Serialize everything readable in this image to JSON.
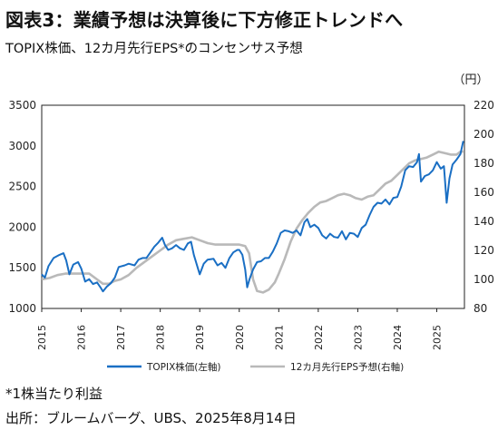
{
  "title": "図表3：業績予想は決算後に下方修正トレンドへ",
  "subtitle": "TOPIX株価、12カ月先行EPS*のコンセンサス予想",
  "note": "*1株当たり利益",
  "source": "出所：ブルームバーグ、UBS、2025年8月14日",
  "chart_data": {
    "type": "line",
    "x_label": "",
    "x_ticks": [
      "2015",
      "2016",
      "2017",
      "2018",
      "2019",
      "2020",
      "2021",
      "2022",
      "2023",
      "2024",
      "2025"
    ],
    "x_range": [
      2015.0,
      2025.7
    ],
    "y_left": {
      "range": [
        1000,
        3500
      ],
      "ticks": [
        1000,
        1500,
        2000,
        2500,
        3000,
        3500
      ],
      "label": ""
    },
    "y_right": {
      "range": [
        80,
        220
      ],
      "ticks": [
        80,
        100,
        120,
        140,
        160,
        180,
        200,
        220
      ],
      "label": "（円）"
    },
    "grid": false,
    "legend_position": "bottom-center",
    "series": [
      {
        "name": "TOPIX株価(左軸)",
        "axis": "left",
        "color": "#1a6fc4",
        "points": [
          [
            2015.0,
            1420
          ],
          [
            2015.08,
            1380
          ],
          [
            2015.17,
            1520
          ],
          [
            2015.3,
            1620
          ],
          [
            2015.45,
            1660
          ],
          [
            2015.55,
            1680
          ],
          [
            2015.62,
            1590
          ],
          [
            2015.7,
            1420
          ],
          [
            2015.8,
            1540
          ],
          [
            2015.92,
            1570
          ],
          [
            2016.0,
            1490
          ],
          [
            2016.1,
            1330
          ],
          [
            2016.2,
            1360
          ],
          [
            2016.3,
            1300
          ],
          [
            2016.4,
            1320
          ],
          [
            2016.5,
            1250
          ],
          [
            2016.55,
            1210
          ],
          [
            2016.65,
            1270
          ],
          [
            2016.75,
            1310
          ],
          [
            2016.85,
            1380
          ],
          [
            2016.95,
            1510
          ],
          [
            2017.1,
            1530
          ],
          [
            2017.2,
            1550
          ],
          [
            2017.35,
            1530
          ],
          [
            2017.45,
            1600
          ],
          [
            2017.55,
            1620
          ],
          [
            2017.65,
            1620
          ],
          [
            2017.75,
            1690
          ],
          [
            2017.85,
            1760
          ],
          [
            2017.95,
            1810
          ],
          [
            2018.05,
            1870
          ],
          [
            2018.12,
            1780
          ],
          [
            2018.2,
            1720
          ],
          [
            2018.3,
            1740
          ],
          [
            2018.4,
            1780
          ],
          [
            2018.5,
            1740
          ],
          [
            2018.6,
            1720
          ],
          [
            2018.7,
            1800
          ],
          [
            2018.78,
            1820
          ],
          [
            2018.85,
            1660
          ],
          [
            2018.95,
            1500
          ],
          [
            2019.0,
            1420
          ],
          [
            2019.1,
            1550
          ],
          [
            2019.2,
            1600
          ],
          [
            2019.35,
            1610
          ],
          [
            2019.45,
            1530
          ],
          [
            2019.55,
            1560
          ],
          [
            2019.65,
            1500
          ],
          [
            2019.75,
            1620
          ],
          [
            2019.85,
            1690
          ],
          [
            2019.95,
            1720
          ],
          [
            2020.0,
            1720
          ],
          [
            2020.08,
            1660
          ],
          [
            2020.15,
            1480
          ],
          [
            2020.2,
            1260
          ],
          [
            2020.26,
            1360
          ],
          [
            2020.35,
            1480
          ],
          [
            2020.45,
            1570
          ],
          [
            2020.55,
            1580
          ],
          [
            2020.65,
            1620
          ],
          [
            2020.75,
            1620
          ],
          [
            2020.85,
            1700
          ],
          [
            2020.95,
            1800
          ],
          [
            2021.05,
            1930
          ],
          [
            2021.15,
            1960
          ],
          [
            2021.25,
            1950
          ],
          [
            2021.35,
            1930
          ],
          [
            2021.45,
            1960
          ],
          [
            2021.55,
            1900
          ],
          [
            2021.65,
            2060
          ],
          [
            2021.72,
            2100
          ],
          [
            2021.8,
            2000
          ],
          [
            2021.9,
            2030
          ],
          [
            2022.0,
            1990
          ],
          [
            2022.1,
            1900
          ],
          [
            2022.2,
            1860
          ],
          [
            2022.3,
            1920
          ],
          [
            2022.4,
            1880
          ],
          [
            2022.5,
            1870
          ],
          [
            2022.6,
            1950
          ],
          [
            2022.7,
            1850
          ],
          [
            2022.8,
            1930
          ],
          [
            2022.9,
            1920
          ],
          [
            2023.0,
            1880
          ],
          [
            2023.1,
            1990
          ],
          [
            2023.2,
            2030
          ],
          [
            2023.3,
            2150
          ],
          [
            2023.4,
            2250
          ],
          [
            2023.5,
            2300
          ],
          [
            2023.6,
            2290
          ],
          [
            2023.7,
            2340
          ],
          [
            2023.8,
            2280
          ],
          [
            2023.9,
            2360
          ],
          [
            2024.0,
            2370
          ],
          [
            2024.1,
            2500
          ],
          [
            2024.2,
            2700
          ],
          [
            2024.3,
            2750
          ],
          [
            2024.4,
            2740
          ],
          [
            2024.5,
            2800
          ],
          [
            2024.55,
            2900
          ],
          [
            2024.6,
            2560
          ],
          [
            2024.7,
            2630
          ],
          [
            2024.8,
            2650
          ],
          [
            2024.9,
            2700
          ],
          [
            2025.0,
            2800
          ],
          [
            2025.1,
            2720
          ],
          [
            2025.18,
            2750
          ],
          [
            2025.25,
            2300
          ],
          [
            2025.32,
            2600
          ],
          [
            2025.4,
            2770
          ],
          [
            2025.5,
            2830
          ],
          [
            2025.6,
            2900
          ],
          [
            2025.67,
            3060
          ]
        ]
      },
      {
        "name": "12カ月先行EPS予想(右軸)",
        "axis": "right",
        "color": "#b9b9b9",
        "points": [
          [
            2015.0,
            100
          ],
          [
            2015.2,
            101
          ],
          [
            2015.4,
            103
          ],
          [
            2015.6,
            104
          ],
          [
            2015.8,
            104
          ],
          [
            2016.0,
            104
          ],
          [
            2016.2,
            104
          ],
          [
            2016.4,
            100
          ],
          [
            2016.55,
            97
          ],
          [
            2016.7,
            97
          ],
          [
            2016.85,
            99
          ],
          [
            2017.0,
            100
          ],
          [
            2017.2,
            103
          ],
          [
            2017.4,
            108
          ],
          [
            2017.6,
            112
          ],
          [
            2017.8,
            116
          ],
          [
            2018.0,
            120
          ],
          [
            2018.2,
            124
          ],
          [
            2018.4,
            127
          ],
          [
            2018.6,
            128
          ],
          [
            2018.8,
            129
          ],
          [
            2019.0,
            127
          ],
          [
            2019.2,
            125
          ],
          [
            2019.4,
            124
          ],
          [
            2019.6,
            124
          ],
          [
            2019.8,
            124
          ],
          [
            2020.0,
            124
          ],
          [
            2020.15,
            123
          ],
          [
            2020.25,
            118
          ],
          [
            2020.35,
            100
          ],
          [
            2020.45,
            92
          ],
          [
            2020.6,
            91
          ],
          [
            2020.75,
            93
          ],
          [
            2020.9,
            98
          ],
          [
            2021.0,
            104
          ],
          [
            2021.15,
            114
          ],
          [
            2021.3,
            126
          ],
          [
            2021.45,
            135
          ],
          [
            2021.6,
            141
          ],
          [
            2021.75,
            146
          ],
          [
            2021.9,
            150
          ],
          [
            2022.05,
            153
          ],
          [
            2022.2,
            154
          ],
          [
            2022.35,
            156
          ],
          [
            2022.5,
            158
          ],
          [
            2022.65,
            159
          ],
          [
            2022.8,
            158
          ],
          [
            2022.95,
            156
          ],
          [
            2023.1,
            155
          ],
          [
            2023.25,
            157
          ],
          [
            2023.4,
            158
          ],
          [
            2023.55,
            162
          ],
          [
            2023.7,
            166
          ],
          [
            2023.85,
            168
          ],
          [
            2024.0,
            172
          ],
          [
            2024.15,
            176
          ],
          [
            2024.3,
            180
          ],
          [
            2024.45,
            182
          ],
          [
            2024.6,
            183
          ],
          [
            2024.75,
            184
          ],
          [
            2024.9,
            186
          ],
          [
            2025.05,
            188
          ],
          [
            2025.2,
            187
          ],
          [
            2025.35,
            186
          ],
          [
            2025.5,
            186
          ],
          [
            2025.6,
            188
          ],
          [
            2025.67,
            188
          ]
        ]
      }
    ]
  }
}
